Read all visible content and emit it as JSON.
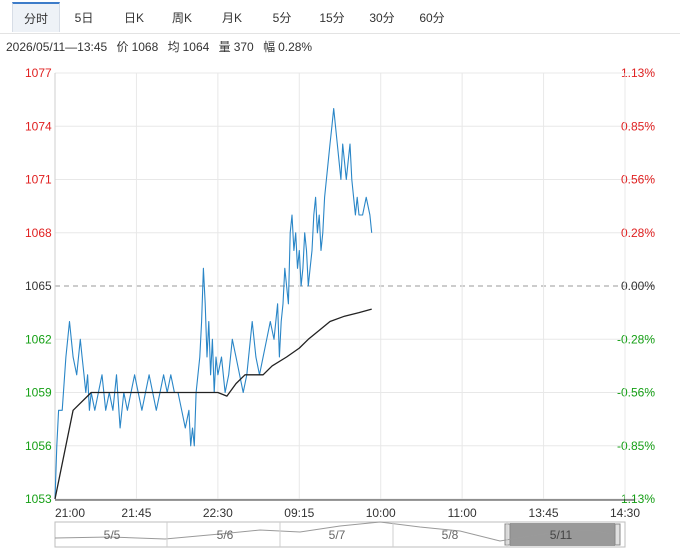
{
  "tabs": [
    {
      "label": "分时",
      "active": true
    },
    {
      "label": "5日"
    },
    {
      "label": "日K"
    },
    {
      "label": "周K"
    },
    {
      "label": "月K"
    },
    {
      "label": "5分"
    },
    {
      "label": "15分"
    },
    {
      "label": "30分"
    },
    {
      "label": "60分"
    }
  ],
  "info": {
    "datetime": "2026/05/11—13:45",
    "price_label": "价",
    "price": "1068",
    "avg_label": "均",
    "avg": "1064",
    "vol_label": "量",
    "vol": "370",
    "change_label": "幅",
    "change": "0.28%"
  },
  "colors": {
    "up": "#e02020",
    "down": "#16a016",
    "price_line": "#2a86c7",
    "avg_line": "#222222",
    "grid": "#e8e8e8",
    "baseline": "#999999"
  },
  "chart_data": {
    "type": "line",
    "ylim": [
      1053,
      1077
    ],
    "base_price": 1065,
    "left_ticks": [
      "1077",
      "1074",
      "1071",
      "1068",
      "1065",
      "1062",
      "1059",
      "1056",
      "1053"
    ],
    "right_ticks": [
      "1.13%",
      "0.85%",
      "0.56%",
      "0.28%",
      "0.00%",
      "-0.28%",
      "-0.56%",
      "-0.85%",
      "-1.13%"
    ],
    "x_ticks": [
      "21:00",
      "21:45",
      "22:30",
      "09:15",
      "10:00",
      "11:00",
      "13:45",
      "14:30"
    ],
    "x_tick_index": [
      0,
      45,
      90,
      135,
      180,
      225,
      270,
      315
    ],
    "total_minutes": 315,
    "series": [
      {
        "role": "price",
        "values": [
          1053,
          1056,
          1058,
          1058,
          1061,
          1063,
          1062,
          1061,
          1060,
          1062,
          1061,
          1060,
          1059,
          1060,
          1058,
          1059,
          1058,
          1059,
          1060,
          1058,
          1059,
          1058,
          1060,
          1057,
          1059,
          1058,
          1059,
          1060,
          1059,
          1058,
          1059,
          1060,
          1059,
          1058,
          1059,
          1060,
          1059,
          1060,
          1059,
          1059,
          1058,
          1057,
          1058,
          1056,
          1057,
          1056,
          1059,
          1061,
          1063,
          1066,
          1064,
          1061,
          1063,
          1060,
          1062,
          1059,
          1061,
          1060,
          1061,
          1059,
          1060,
          1062,
          1061,
          1060,
          1059,
          1060,
          1062,
          1063,
          1061,
          1060,
          1061,
          1062,
          1063,
          1062,
          1064,
          1061,
          1063,
          1064,
          1066,
          1065,
          1064,
          1068,
          1069,
          1067,
          1068,
          1066,
          1067,
          1065,
          1066,
          1068,
          1067,
          1065,
          1066,
          1067,
          1069,
          1070,
          1068,
          1069,
          1067,
          1068,
          1070,
          1071,
          1072,
          1073,
          1074,
          1075,
          1074,
          1073,
          1072,
          1071,
          1073,
          1072,
          1071,
          1072,
          1073,
          1071,
          1070,
          1069,
          1070,
          1069,
          1069,
          1070,
          1069,
          1068
        ],
        "x_index": [
          0,
          1,
          2,
          4,
          6,
          8,
          9,
          10,
          12,
          14,
          15,
          16,
          17,
          18,
          19,
          20,
          22,
          24,
          26,
          28,
          30,
          32,
          34,
          36,
          38,
          40,
          42,
          44,
          46,
          48,
          50,
          52,
          54,
          56,
          58,
          60,
          62,
          64,
          66,
          68,
          70,
          72,
          74,
          75,
          76,
          77,
          78,
          80,
          81,
          82,
          83,
          84,
          85,
          86,
          87,
          88,
          89,
          90,
          92,
          94,
          96,
          98,
          100,
          102,
          104,
          106,
          108,
          109,
          111,
          113,
          115,
          117,
          119,
          121,
          123,
          124,
          125,
          126,
          127,
          128,
          129,
          130,
          131,
          132,
          133,
          134,
          135,
          136,
          137,
          138,
          139,
          140,
          141,
          142,
          143,
          144,
          145,
          146,
          147,
          148,
          149,
          150,
          151,
          152,
          153,
          154,
          155,
          156,
          157,
          158,
          159,
          160,
          161,
          162,
          163,
          164,
          165,
          166,
          167,
          168,
          170,
          172,
          174,
          175
        ]
      },
      {
        "role": "average",
        "values": [
          1053,
          1058,
          1059,
          1059,
          1059,
          1059,
          1059,
          1059,
          1059,
          1058.8,
          1059.5,
          1060,
          1060,
          1060,
          1060.5,
          1061,
          1061.5,
          1062,
          1062.5,
          1063,
          1063.3,
          1063.5,
          1063.7
        ],
        "x_index": [
          0,
          10,
          20,
          40,
          60,
          70,
          80,
          85,
          90,
          95,
          100,
          105,
          110,
          115,
          120,
          128,
          135,
          140,
          146,
          152,
          160,
          168,
          175
        ]
      }
    ],
    "navigator_labels": [
      "5/5",
      "5/6",
      "5/7",
      "5/8",
      "5/11"
    ]
  }
}
